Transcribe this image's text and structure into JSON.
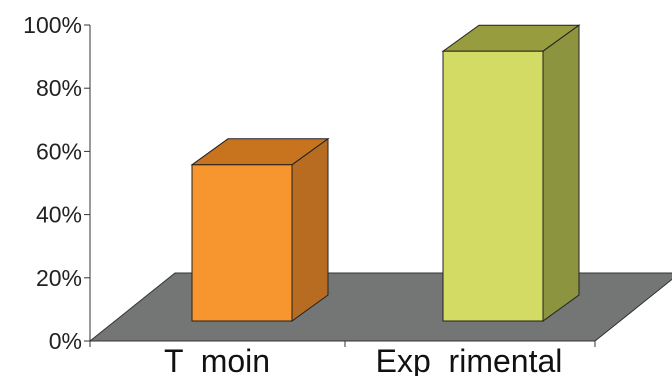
{
  "chart_data": {
    "type": "bar",
    "style": "3d",
    "categories": [
      "T  moin",
      "Exp  rimental"
    ],
    "values": [
      55,
      95
    ],
    "value_unit": "%",
    "ylim": [
      0,
      100
    ],
    "yticks": [
      "0%",
      "20%",
      "40%",
      "60%",
      "80%",
      "100%"
    ],
    "title": "",
    "xlabel": "",
    "ylabel": "",
    "grid": false,
    "legend": "none",
    "colors": {
      "bars": [
        {
          "front": "#f7952f",
          "side": "#b86c22",
          "top": "#c8741f"
        },
        {
          "front": "#d4db64",
          "side": "#8d9440",
          "top": "#979c3e"
        }
      ],
      "floor": "#747676",
      "axis": "#333333"
    }
  }
}
